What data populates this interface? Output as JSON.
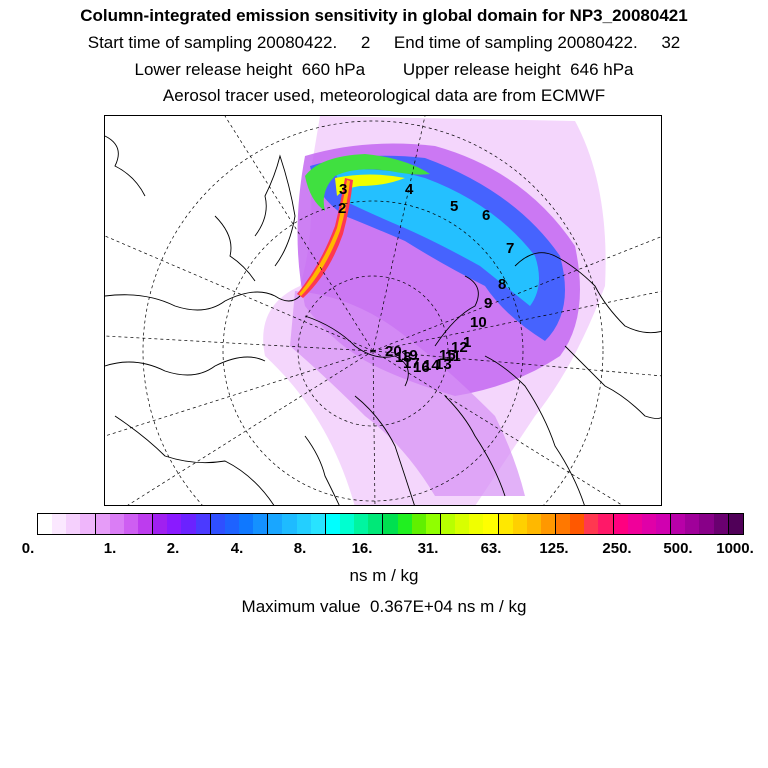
{
  "header": {
    "title": "Column-integrated emission sensitivity in global domain for NP3_20080421",
    "line1": "Start time of sampling 20080422.     2     End time of sampling 20080422.     32",
    "line2": "Lower release height  660 hPa        Upper release height  646 hPa",
    "line3": "Aerosol tracer used, meteorological data are from ECMWF"
  },
  "map": {
    "projection": "north-polar-stereographic",
    "trajectory_labels": [
      "1",
      "2",
      "3",
      "4",
      "5",
      "6",
      "7",
      "8",
      "9",
      "10",
      "11",
      "12",
      "13",
      "14",
      "15",
      "16",
      "17",
      "18",
      "19",
      "20"
    ]
  },
  "colorbar": {
    "colors": [
      "#ffffff",
      "#fbe8ff",
      "#f5d0fd",
      "#efb6fb",
      "#e69cf8",
      "#da7df5",
      "#ce5ef2",
      "#bd3cee",
      "#a020f0",
      "#8a1aff",
      "#6b22ff",
      "#4b3aff",
      "#2f4fff",
      "#1e62ff",
      "#0f78ff",
      "#1491ff",
      "#19a6ff",
      "#1ebbff",
      "#23cfff",
      "#28e3ff",
      "#00ffff",
      "#00ffd0",
      "#00f5a0",
      "#00e878",
      "#00e050",
      "#20f020",
      "#60f000",
      "#90ff00",
      "#b8ff00",
      "#d8ff00",
      "#f0ff00",
      "#ffff00",
      "#ffe800",
      "#ffd000",
      "#ffb800",
      "#ff9800",
      "#ff7800",
      "#ff5800",
      "#ff3850",
      "#ff1868",
      "#ff0080",
      "#f0009a",
      "#e000a8",
      "#d000b0",
      "#b800a8",
      "#a0009a",
      "#880088",
      "#6a0070",
      "#500058"
    ],
    "tick_labels": [
      "0.",
      "1.",
      "2.",
      "4.",
      "8.",
      "16.",
      "31.",
      "63.",
      "125.",
      "250.",
      "500.",
      "1000."
    ],
    "units": "ns m / kg"
  },
  "max_value_text": "Maximum value  0.367E+04 ns m / kg"
}
